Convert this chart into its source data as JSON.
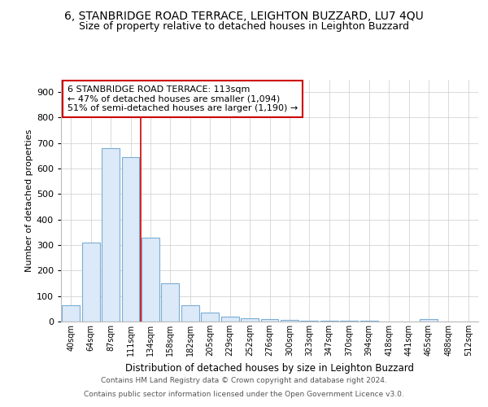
{
  "title": "6, STANBRIDGE ROAD TERRACE, LEIGHTON BUZZARD, LU7 4QU",
  "subtitle": "Size of property relative to detached houses in Leighton Buzzard",
  "xlabel": "Distribution of detached houses by size in Leighton Buzzard",
  "ylabel": "Number of detached properties",
  "footer_line1": "Contains HM Land Registry data © Crown copyright and database right 2024.",
  "footer_line2": "Contains public sector information licensed under the Open Government Licence v3.0.",
  "categories": [
    "40sqm",
    "64sqm",
    "87sqm",
    "111sqm",
    "134sqm",
    "158sqm",
    "182sqm",
    "205sqm",
    "229sqm",
    "252sqm",
    "276sqm",
    "300sqm",
    "323sqm",
    "347sqm",
    "370sqm",
    "394sqm",
    "418sqm",
    "441sqm",
    "465sqm",
    "488sqm",
    "512sqm"
  ],
  "values": [
    65,
    310,
    680,
    645,
    330,
    150,
    65,
    35,
    20,
    12,
    8,
    5,
    4,
    3,
    2,
    2,
    1,
    1,
    8,
    1,
    1
  ],
  "bar_color": "#dce9f8",
  "bar_edge_color": "#7aaed4",
  "property_line_x": 3.5,
  "annotation_title": "6 STANBRIDGE ROAD TERRACE: 113sqm",
  "annotation_line2": "← 47% of detached houses are smaller (1,094)",
  "annotation_line3": "51% of semi-detached houses are larger (1,190) →",
  "annotation_box_color": "#cc0000",
  "line_color": "#cc0000",
  "ylim": [
    0,
    950
  ],
  "yticks": [
    0,
    100,
    200,
    300,
    400,
    500,
    600,
    700,
    800,
    900
  ],
  "grid_color": "#cccccc",
  "background_color": "#ffffff",
  "title_fontsize": 10,
  "subtitle_fontsize": 9
}
